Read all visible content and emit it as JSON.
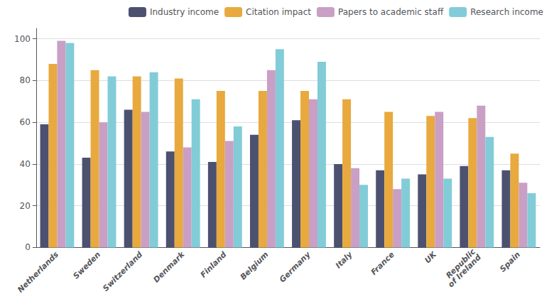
{
  "chart_data": {
    "type": "bar",
    "categories": [
      "Netherlands",
      "Sweden",
      "Switzerland",
      "Denmark",
      "Finland",
      "Belgium",
      "Germany",
      "Italy",
      "France",
      "UK",
      "Republic\nof Ireland",
      "Spain"
    ],
    "series": [
      {
        "name": "Industry income",
        "color": "#4d5170",
        "values": [
          59,
          43,
          66,
          46,
          41,
          54,
          61,
          40,
          37,
          35,
          39,
          37
        ]
      },
      {
        "name": "Citation impact",
        "color": "#e8a93e",
        "values": [
          88,
          85,
          82,
          81,
          75,
          75,
          75,
          71,
          65,
          63,
          62,
          45
        ]
      },
      {
        "name": "Papers to academic staff",
        "color": "#c99fc5",
        "values": [
          99,
          60,
          65,
          48,
          51,
          85,
          71,
          38,
          28,
          65,
          68,
          31
        ]
      },
      {
        "name": "Research income",
        "color": "#82ccd8",
        "values": [
          98,
          82,
          84,
          71,
          58,
          95,
          89,
          30,
          33,
          33,
          53,
          26
        ]
      }
    ],
    "ylim": [
      0,
      105
    ],
    "yticks": [
      0,
      20,
      40,
      60,
      80,
      100
    ],
    "grid": true,
    "legend": "upper right"
  }
}
